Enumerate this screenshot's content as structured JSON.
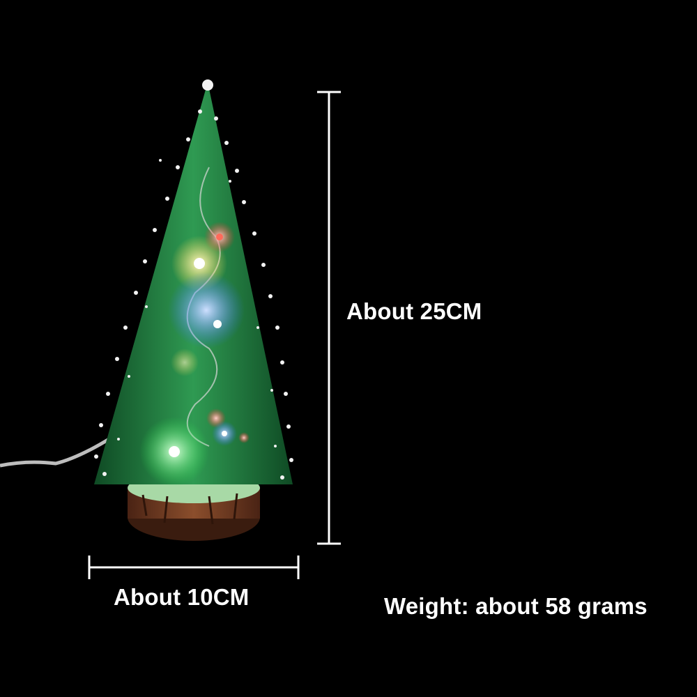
{
  "dimensions": {
    "height_text": "About 25CM",
    "width_text": "About 10CM",
    "weight_text": "Weight: about 58 grams"
  },
  "colors": {
    "background": "#000000",
    "text": "#ffffff",
    "tree_green": "#1f7a3f",
    "snow": "#f2f2f2",
    "wood": "#6b3a22"
  },
  "lights": [
    {
      "color": "#ff3b3b",
      "name": "red-light"
    },
    {
      "color": "#ffe27a",
      "name": "yellow-light"
    },
    {
      "color": "#3a7bff",
      "name": "blue-light"
    },
    {
      "color": "#4cff6a",
      "name": "green-light"
    },
    {
      "color": "#ff5a3a",
      "name": "orange-light"
    }
  ]
}
